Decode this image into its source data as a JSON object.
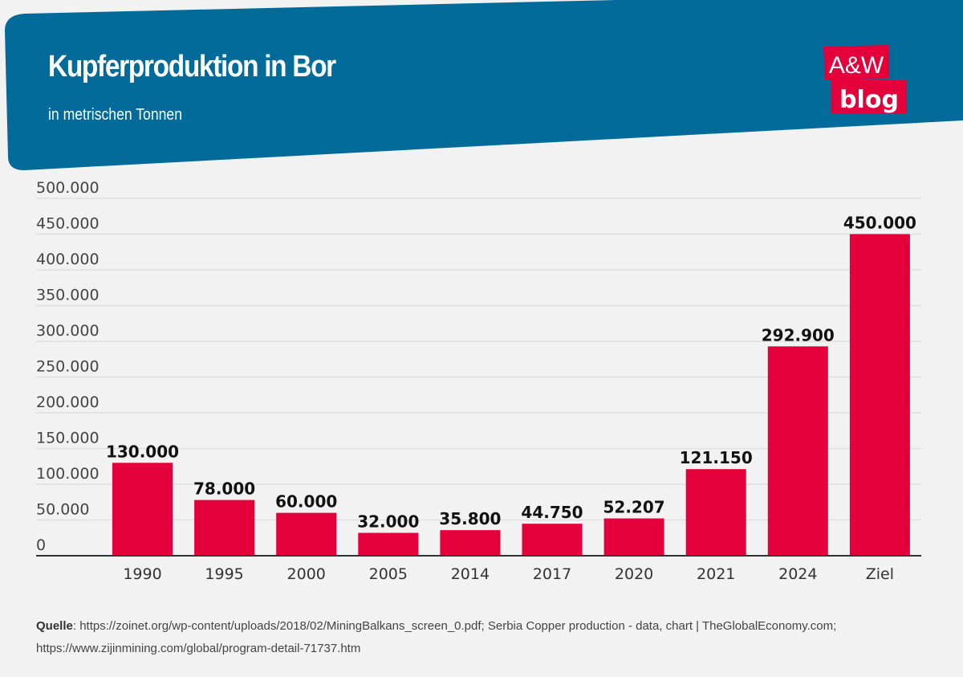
{
  "header": {
    "title": "Kupferproduktion in Bor",
    "subtitle": "in metrischen Tonnen",
    "banner_color": "#036b99"
  },
  "logo": {
    "line1": "A&W",
    "line2": "blog",
    "color": "#e4003b"
  },
  "source": {
    "label": "Quelle",
    "text": ": https://zoinet.org/wp-content/uploads/2018/02/MiningBalkans_screen_0.pdf; Serbia Copper production - data, chart | TheGlobalEconomy.com; https://www.zijinmining.com/global/program-detail-71737.htm"
  },
  "chart_data": {
    "type": "bar",
    "title": "Kupferproduktion in Bor",
    "subtitle": "in metrischen Tonnen",
    "categories": [
      "1990",
      "1995",
      "2000",
      "2005",
      "2014",
      "2017",
      "2020",
      "2021",
      "2024",
      "Ziel"
    ],
    "values": [
      130000,
      78000,
      60000,
      32000,
      35800,
      44750,
      52207,
      121150,
      292900,
      450000
    ],
    "data_labels": [
      "130.000",
      "78.000",
      "60.000",
      "32.000",
      "35.800",
      "44.750",
      "52.207",
      "121.150",
      "292.900",
      "450.000"
    ],
    "ylim": [
      0,
      500000
    ],
    "yticks": [
      0,
      50000,
      100000,
      150000,
      200000,
      250000,
      300000,
      350000,
      400000,
      450000,
      500000
    ],
    "ytick_labels": [
      "0",
      "50.000",
      "100.000",
      "150.000",
      "200.000",
      "250.000",
      "300.000",
      "350.000",
      "400.000",
      "450.000",
      "500.000"
    ],
    "grid": true,
    "bar_color": "#e4003b"
  }
}
